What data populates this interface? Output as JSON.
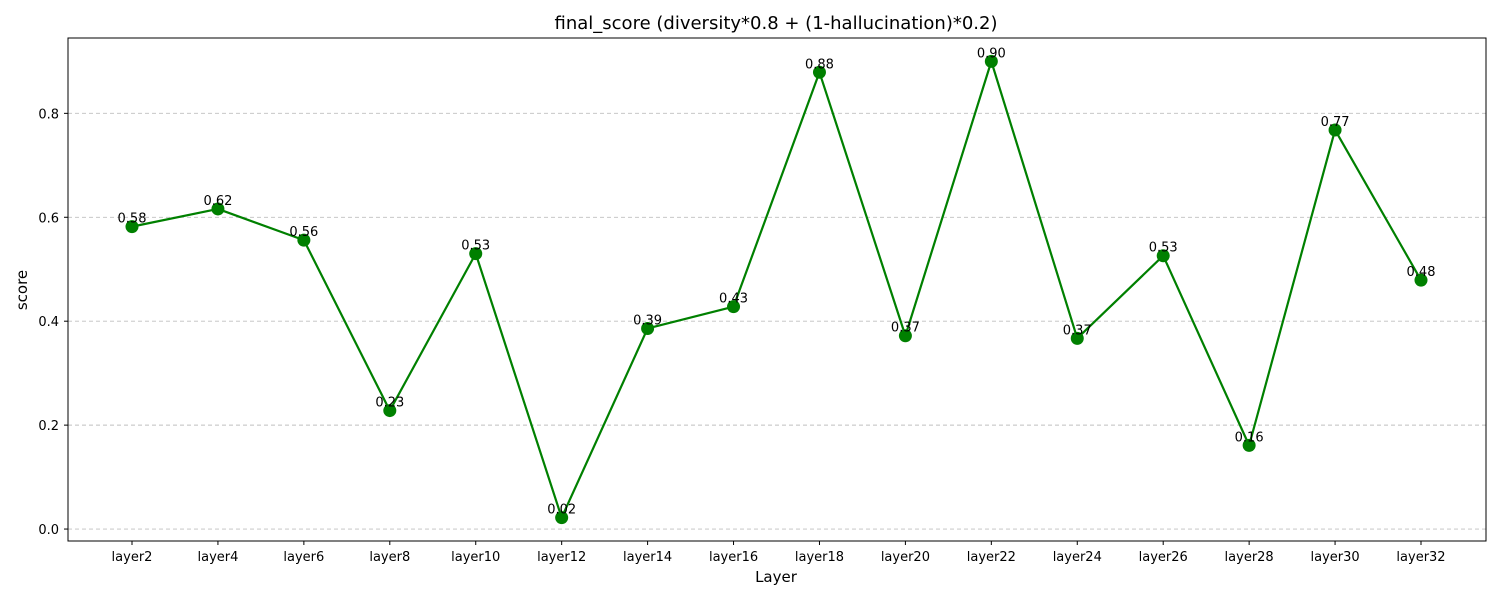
{
  "chart_data": {
    "type": "line",
    "title": "final_score (diversity*0.8 + (1-hallucination)*0.2)",
    "xlabel": "Layer",
    "ylabel": "score",
    "categories": [
      "layer2",
      "layer4",
      "layer6",
      "layer8",
      "layer10",
      "layer12",
      "layer14",
      "layer16",
      "layer18",
      "layer20",
      "layer22",
      "layer24",
      "layer26",
      "layer28",
      "layer30",
      "layer32"
    ],
    "series": [
      {
        "values": [
          0.582,
          0.616,
          0.556,
          0.228,
          0.53,
          0.022,
          0.386,
          0.428,
          0.879,
          0.372,
          0.9,
          0.367,
          0.526,
          0.161,
          0.768,
          0.479
        ],
        "data_labels": [
          "0.58",
          "0.62",
          "0.56",
          "0.23",
          "0.53",
          "0.02",
          "0.39",
          "0.43",
          "0.88",
          "0.37",
          "0.90",
          "0.37",
          "0.53",
          "0.16",
          "0.77",
          "0.48"
        ]
      }
    ],
    "ylim": [
      -0.023,
      0.945
    ],
    "yticks": [
      0.0,
      0.2,
      0.4,
      0.6,
      0.8
    ],
    "ytick_labels": [
      "0.0",
      "0.2",
      "0.4",
      "0.6",
      "0.8"
    ],
    "grid": "y-dashed",
    "legend": "none",
    "colors": {
      "line": "#008000",
      "marker": "#008000"
    }
  }
}
